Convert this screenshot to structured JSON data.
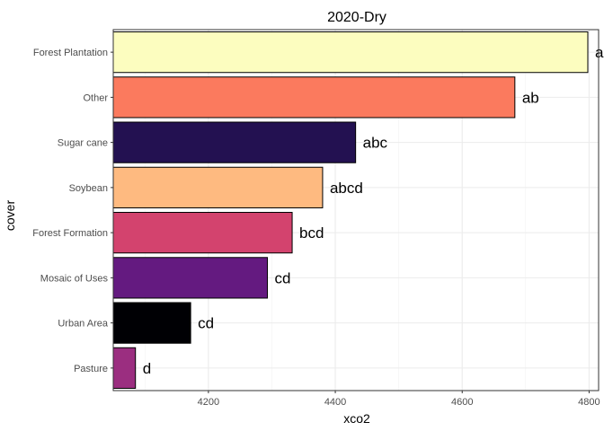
{
  "chart_data": {
    "type": "bar",
    "orientation": "horizontal",
    "title": "2020-Dry",
    "xlabel": "xco2",
    "ylabel": "cover",
    "xlim": [
      4050,
      4815
    ],
    "x_ticks": [
      4200,
      4400,
      4600,
      4800
    ],
    "grid": true,
    "categories": [
      "Forest Plantation",
      "Other",
      "Sugar cane",
      "Soybean",
      "Forest Formation",
      "Mosaic of Uses",
      "Urban Area",
      "Pasture"
    ],
    "values": [
      4798,
      4683,
      4432,
      4380,
      4332,
      4293,
      4172,
      4085
    ],
    "labels": [
      "a",
      "ab",
      "abc",
      "abcd",
      "bcd",
      "cd",
      "cd",
      "d"
    ],
    "colors": [
      "#FCFDBF",
      "#FB7A5E",
      "#231151",
      "#FEBA80",
      "#D3436E",
      "#641A80",
      "#000004",
      "#9B2E80"
    ]
  }
}
